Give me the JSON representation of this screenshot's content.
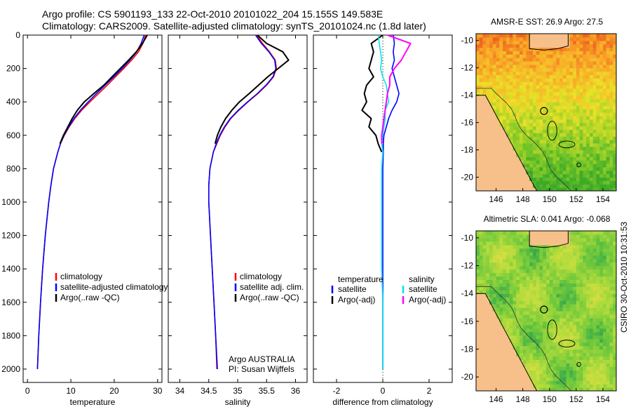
{
  "header": {
    "line1": "Argo profile: CS 5901193_133 22-Oct-2010 20101022_204 15.155S 149.583E",
    "line2": "Climatology: CARS2009. Satellite-adjusted climatology: synTS_20101024.nc (1.8d later)"
  },
  "side_label": "CSIRO 30-Oct-2010 10:31:53",
  "colors": {
    "climatology": "#ff0000",
    "satellite": "#0000ff",
    "argo": "#000000",
    "sal_satellite": "#00e5ee",
    "sal_argo": "#ff00ff",
    "land": "#f7c08a"
  },
  "chart_data": [
    {
      "type": "line",
      "id": "temperature",
      "xlabel": "temperature",
      "ylabel": "",
      "xlim": [
        -1,
        31
      ],
      "ylim": [
        2080,
        0
      ],
      "xticks": [
        0,
        10,
        20,
        30
      ],
      "yticks": [
        0,
        200,
        400,
        600,
        800,
        1000,
        1200,
        1400,
        1600,
        1800,
        2000
      ],
      "depth": [
        0,
        50,
        100,
        150,
        200,
        250,
        300,
        350,
        400,
        450,
        500,
        550,
        600,
        650,
        700,
        800,
        900,
        1000,
        1200,
        1400,
        1600,
        1800,
        2000
      ],
      "series": [
        {
          "name": "climatology",
          "values": [
            27.2,
            26.6,
            25.6,
            24.0,
            22.2,
            20.3,
            18.4,
            16.4,
            14.4,
            12.5,
            10.9,
            9.6,
            8.5,
            7.6,
            7.0,
            6.0,
            5.4,
            4.9,
            4.1,
            3.5,
            3.0,
            2.6,
            2.3
          ]
        },
        {
          "name": "satellite-adjusted climatology",
          "values": [
            26.9,
            26.2,
            25.2,
            23.6,
            21.8,
            19.9,
            17.9,
            15.9,
            14.0,
            12.2,
            10.7,
            9.5,
            8.4,
            7.6,
            7.0,
            6.0,
            5.4,
            4.9,
            4.1,
            3.5,
            3.0,
            2.6,
            2.3
          ]
        },
        {
          "name": "Argo(..raw -QC)",
          "values": [
            27.6,
            26.5,
            25.1,
            23.3,
            21.4,
            19.5,
            17.6,
            15.3,
            13.1,
            11.5,
            10.3,
            9.3,
            8.3,
            7.5,
            null,
            null,
            null,
            null,
            null,
            null,
            null,
            null,
            null
          ]
        }
      ],
      "legend": [
        "climatology",
        "satellite-adjusted climatology",
        "Argo(..raw -QC)"
      ]
    },
    {
      "type": "line",
      "id": "salinity",
      "xlabel": "salinity",
      "xlim": [
        33.8,
        36.2
      ],
      "ylim": [
        2080,
        0
      ],
      "xticks": [
        34,
        34.5,
        35,
        35.5,
        36
      ],
      "depth": [
        0,
        50,
        100,
        150,
        200,
        250,
        300,
        350,
        400,
        450,
        500,
        550,
        600,
        650,
        700,
        800,
        900,
        1000,
        1200,
        1400,
        1600,
        1800,
        2000
      ],
      "series": [
        {
          "name": "climatology",
          "values": [
            35.33,
            35.43,
            35.55,
            35.65,
            35.67,
            35.62,
            35.5,
            35.35,
            35.18,
            35.02,
            34.88,
            34.78,
            34.7,
            34.64,
            34.58,
            34.52,
            34.5,
            34.5,
            34.53,
            34.56,
            34.59,
            34.62,
            34.64
          ]
        },
        {
          "name": "satellite adj. clim.",
          "values": [
            35.31,
            35.41,
            35.54,
            35.64,
            35.66,
            35.61,
            35.49,
            35.34,
            35.17,
            35.01,
            34.87,
            34.77,
            34.69,
            34.63,
            34.58,
            34.52,
            34.5,
            34.5,
            34.53,
            34.56,
            34.59,
            34.62,
            34.65
          ]
        },
        {
          "name": "Argo(..raw -QC)",
          "values": [
            35.34,
            35.5,
            35.78,
            35.88,
            35.7,
            35.52,
            35.36,
            35.2,
            35.03,
            34.9,
            34.79,
            34.71,
            34.65,
            34.61,
            null,
            null,
            null,
            null,
            null,
            null,
            null,
            null,
            null
          ]
        }
      ],
      "legend": [
        "climatology",
        "satellite adj. clim.",
        "Argo(..raw -QC)"
      ],
      "annotation": [
        "Argo AUSTRALIA",
        "PI: Susan Wijffels"
      ]
    },
    {
      "type": "line",
      "id": "difference",
      "xlabel": "difference from climatology",
      "xlim": [
        -3,
        3
      ],
      "ylim": [
        2080,
        0
      ],
      "xticks": [
        -2,
        0,
        2
      ],
      "depth": [
        0,
        50,
        100,
        150,
        200,
        250,
        300,
        350,
        400,
        450,
        500,
        550,
        600,
        650,
        700,
        800,
        900,
        1000,
        1200,
        1400,
        1600,
        1800,
        2000
      ],
      "series": [
        {
          "name": "temperature satellite",
          "values": [
            0.45,
            0.5,
            0.45,
            0.5,
            0.4,
            0.5,
            0.6,
            0.7,
            0.6,
            0.4,
            0.25,
            0.15,
            0.05,
            0.02,
            0.02,
            0.0,
            0.0,
            0.0,
            0.0,
            0.0,
            0.0,
            0.0,
            0.0
          ]
        },
        {
          "name": "temperature Argo(-adj)",
          "values": [
            0.0,
            -0.5,
            -0.4,
            -0.5,
            -0.6,
            -0.4,
            -0.7,
            -0.8,
            -0.7,
            -0.9,
            -0.5,
            -0.6,
            -0.3,
            -0.2,
            -0.05,
            null,
            null,
            null,
            null,
            null,
            null,
            null,
            null
          ]
        },
        {
          "name": "salinity satellite",
          "values": [
            -0.2,
            -0.15,
            -0.1,
            -0.05,
            -0.1,
            0.0,
            0.15,
            0.2,
            0.25,
            0.1,
            0.1,
            0.05,
            0.0,
            -0.05,
            0.0,
            -0.05,
            -0.05,
            -0.05,
            -0.05,
            -0.05,
            0.0,
            0.0,
            0.0
          ]
        },
        {
          "name": "salinity Argo(-adj)",
          "values": [
            0.2,
            1.2,
            1.0,
            0.8,
            0.5,
            0.3,
            0.3,
            0.2,
            0.15,
            0.1,
            0.05,
            0.0,
            -0.05,
            -0.05,
            null,
            null,
            null,
            null,
            null,
            null,
            null,
            null,
            null
          ]
        }
      ],
      "legend_groups": [
        {
          "title": "temperature",
          "items": [
            "satellite",
            "Argo(-adj)"
          ]
        },
        {
          "title": "salinity",
          "items": [
            "satellite",
            "Argo(-adj)"
          ]
        }
      ]
    },
    {
      "type": "heatmap",
      "id": "sst_map",
      "title": "AMSR-E SST: 26.9  Argo: 27.5",
      "xlim": [
        144.5,
        155
      ],
      "ylim": [
        -21,
        -9.5
      ],
      "xticks": [
        146,
        148,
        150,
        152,
        154
      ],
      "yticks": [
        -10,
        -12,
        -14,
        -16,
        -18,
        -20
      ],
      "float_position": [
        149.583,
        -15.155
      ]
    },
    {
      "type": "heatmap",
      "id": "sla_map",
      "title": "Altimetric SLA: 0.041  Argo: -0.068",
      "xlim": [
        144.5,
        155
      ],
      "ylim": [
        -21,
        -9.5
      ],
      "xticks": [
        146,
        148,
        150,
        152,
        154
      ],
      "yticks": [
        -10,
        -12,
        -14,
        -16,
        -18,
        -20
      ],
      "float_position": [
        149.583,
        -15.155
      ]
    }
  ]
}
